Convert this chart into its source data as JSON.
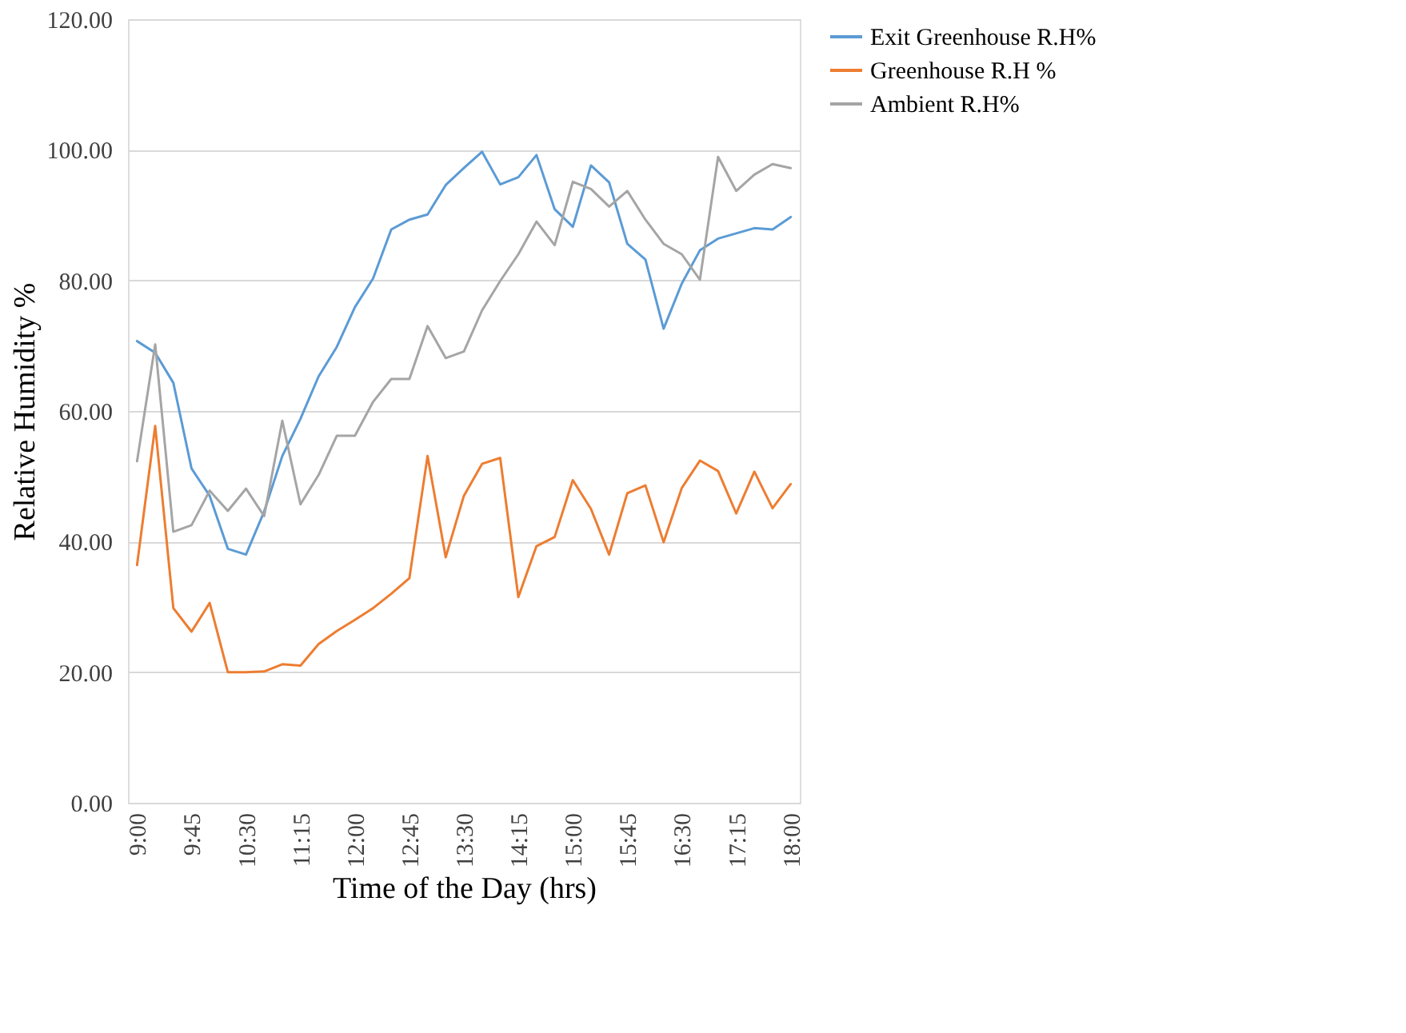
{
  "chart_data": {
    "type": "line",
    "xlabel": "Time of the Day (hrs)",
    "ylabel": "Relative Humidity %",
    "categories": [
      "9:00",
      null,
      null,
      "9:45",
      null,
      null,
      "10:30",
      null,
      null,
      "11:15",
      null,
      null,
      "12:00",
      null,
      null,
      "12:45",
      null,
      null,
      "13:30",
      null,
      null,
      "14:15",
      null,
      null,
      "15:00",
      null,
      null,
      "15:45",
      null,
      null,
      "16:30",
      null,
      null,
      "17:15",
      null,
      null,
      "18:00"
    ],
    "series": [
      {
        "name": "Exit Greenhouse R.H%",
        "color": "#5b9bd5",
        "values": [
          70.7,
          68.9,
          64.3,
          51.2,
          47.0,
          38.9,
          38.0,
          44.6,
          53.1,
          58.8,
          65.3,
          69.8,
          75.9,
          80.3,
          87.8,
          89.3,
          90.1,
          94.6,
          97.2,
          99.7,
          94.7,
          95.8,
          99.2,
          90.9,
          88.2,
          97.6,
          95.0,
          85.6,
          83.2,
          72.6,
          79.5,
          84.6,
          86.4,
          87.2,
          88.0,
          87.8,
          89.7
        ]
      },
      {
        "name": "Greenhouse R.H %",
        "color": "#ed7d31",
        "values": [
          36.4,
          57.7,
          29.8,
          26.2,
          30.6,
          20.0,
          20.0,
          20.1,
          21.2,
          21.0,
          24.3,
          26.3,
          28.0,
          29.8,
          32.0,
          34.4,
          53.1,
          37.6,
          47.0,
          51.9,
          52.8,
          31.5,
          39.3,
          40.7,
          49.4,
          45.0,
          38.0,
          47.4,
          48.6,
          39.9,
          48.2,
          52.4,
          50.8,
          44.3,
          50.7,
          45.1,
          48.8
        ]
      },
      {
        "name": "Ambient R.H%",
        "color": "#a5a5a5",
        "values": [
          52.3,
          70.2,
          41.5,
          42.5,
          47.8,
          44.7,
          48.1,
          43.9,
          58.5,
          45.7,
          50.2,
          56.2,
          56.2,
          61.4,
          64.9,
          64.9,
          73.0,
          68.1,
          69.1,
          75.4,
          79.9,
          84.0,
          89.0,
          85.4,
          95.1,
          94.0,
          91.3,
          93.7,
          89.3,
          85.6,
          84.0,
          80.1,
          98.9,
          93.7,
          96.2,
          97.8,
          97.2
        ]
      }
    ],
    "ylim": [
      0,
      120
    ],
    "yticks": [
      {
        "value": 0,
        "label": "0.00"
      },
      {
        "value": 20,
        "label": "20.00"
      },
      {
        "value": 40,
        "label": "40.00"
      },
      {
        "value": 60,
        "label": "60.00"
      },
      {
        "value": 80,
        "label": "80.00"
      },
      {
        "value": 100,
        "label": "100.00"
      },
      {
        "value": 120,
        "label": "120.00"
      }
    ],
    "grid": "y",
    "legend": "right",
    "marker": "none",
    "line_style": "solid"
  }
}
